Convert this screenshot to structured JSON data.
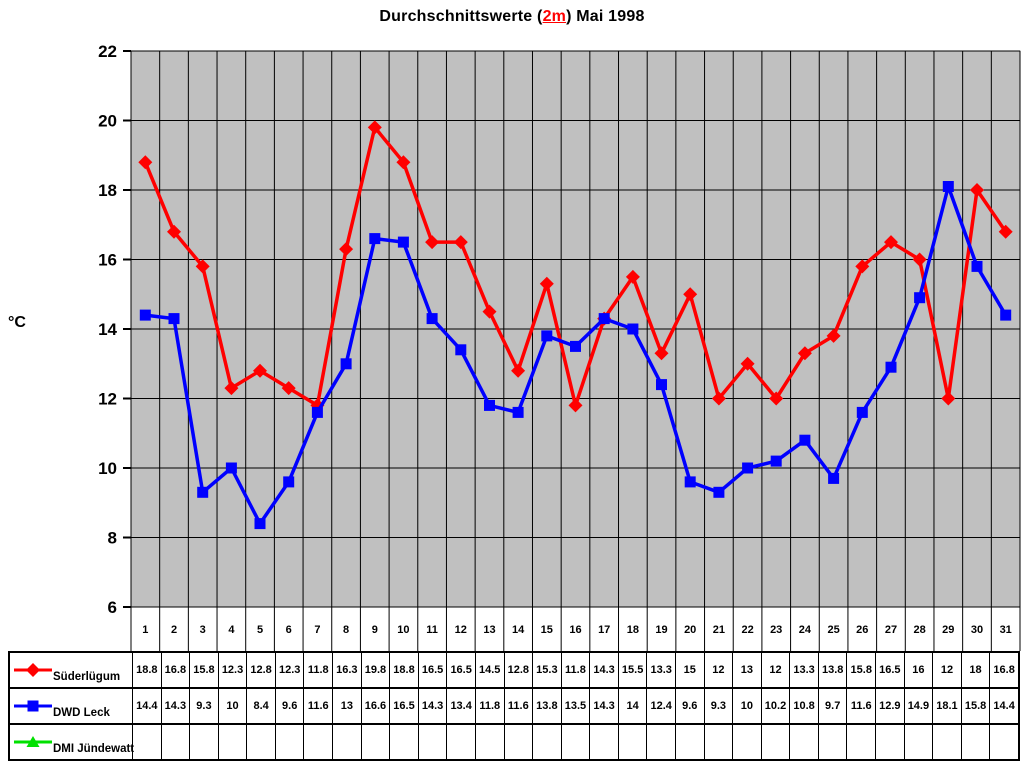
{
  "title": {
    "prefix": "Durchschnittswerte (",
    "highlight": "2m",
    "suffix": ") Mai 1998",
    "highlight_color": "#ff0000"
  },
  "chart_data": {
    "type": "line",
    "title": "Durchschnittswerte (2m) Mai 1998",
    "xlabel": "",
    "ylabel": "°C",
    "ylim": [
      6,
      22
    ],
    "yticks": [
      22,
      20,
      18,
      16,
      14,
      12,
      10,
      8,
      6
    ],
    "grid": true,
    "plot_bg": "#c0c0c0",
    "grid_color": "#000000",
    "legend_position": "table-left",
    "x": [
      1,
      2,
      3,
      4,
      5,
      6,
      7,
      8,
      9,
      10,
      11,
      12,
      13,
      14,
      15,
      16,
      17,
      18,
      19,
      20,
      21,
      22,
      23,
      24,
      25,
      26,
      27,
      28,
      29,
      30,
      31
    ],
    "series": [
      {
        "name": "Süderlügum",
        "color": "#ff0000",
        "marker": "diamond",
        "values": [
          18.8,
          16.8,
          15.8,
          12.3,
          12.8,
          12.3,
          11.8,
          16.3,
          19.8,
          18.8,
          16.5,
          16.5,
          14.5,
          12.8,
          15.3,
          11.8,
          14.3,
          15.5,
          13.3,
          15,
          12,
          13,
          12,
          13.3,
          13.8,
          15.8,
          16.5,
          16,
          12,
          18,
          16.8
        ]
      },
      {
        "name": "DWD Leck",
        "color": "#0000ff",
        "marker": "square",
        "values": [
          14.4,
          14.3,
          9.3,
          10,
          8.4,
          9.6,
          11.6,
          13,
          16.6,
          16.5,
          14.3,
          13.4,
          11.8,
          11.6,
          13.8,
          13.5,
          14.3,
          14,
          12.4,
          9.6,
          9.3,
          10,
          10.2,
          10.8,
          9.7,
          11.6,
          12.9,
          14.9,
          18.1,
          15.8,
          14.4
        ]
      },
      {
        "name": "DMI Jündewatt",
        "color": "#00e000",
        "marker": "triangle",
        "values": []
      }
    ]
  }
}
